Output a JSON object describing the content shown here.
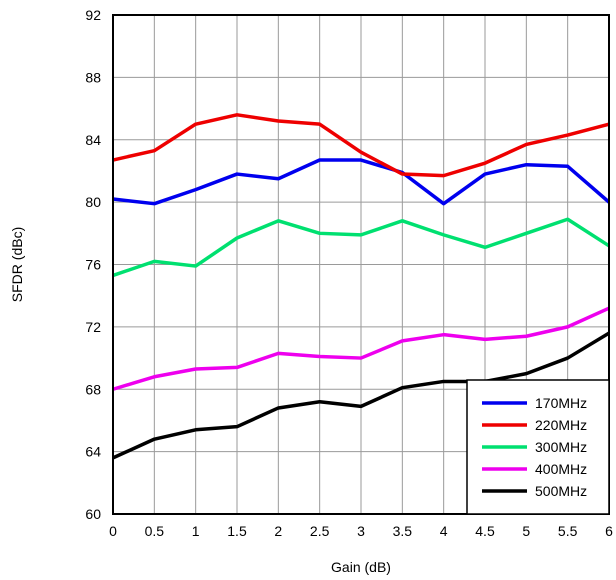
{
  "chart_data": {
    "type": "line",
    "xlabel": "Gain (dB)",
    "ylabel": "SFDR (dBc)",
    "xlim": [
      0,
      6
    ],
    "ylim": [
      60,
      92
    ],
    "xticks": [
      0,
      0.5,
      1,
      1.5,
      2,
      2.5,
      3,
      3.5,
      4,
      4.5,
      5,
      5.5,
      6
    ],
    "xtick_labels": [
      "0",
      "0.5",
      "1",
      "1.5",
      "2",
      "2.5",
      "3",
      "3.5",
      "4",
      "4.5",
      "5",
      "5.5",
      "6"
    ],
    "yticks": [
      60,
      64,
      68,
      72,
      76,
      80,
      84,
      88,
      92
    ],
    "ytick_labels": [
      "60",
      "64",
      "68",
      "72",
      "76",
      "80",
      "84",
      "88",
      "92"
    ],
    "grid": true,
    "legend_position": "bottom-right",
    "x": [
      0,
      0.5,
      1,
      1.5,
      2,
      2.5,
      3,
      3.5,
      4,
      4.5,
      5,
      5.5,
      6
    ],
    "series": [
      {
        "name": "170MHz",
        "color": "#0000ee",
        "values": [
          80.2,
          79.9,
          80.8,
          81.8,
          81.5,
          82.7,
          82.7,
          81.9,
          79.9,
          81.8,
          82.4,
          82.3,
          80.0
        ]
      },
      {
        "name": "220MHz",
        "color": "#ee0000",
        "values": [
          82.7,
          83.3,
          85.0,
          85.6,
          85.2,
          85.0,
          83.2,
          81.8,
          81.7,
          82.5,
          83.7,
          84.3,
          85.0
        ]
      },
      {
        "name": "300MHz",
        "color": "#00e070",
        "values": [
          75.3,
          76.2,
          75.9,
          77.7,
          78.8,
          78.0,
          77.9,
          78.8,
          77.9,
          77.1,
          78.0,
          78.9,
          77.2
        ]
      },
      {
        "name": "400MHz",
        "color": "#ee00ee",
        "values": [
          68.0,
          68.8,
          69.3,
          69.4,
          70.3,
          70.1,
          70.0,
          71.1,
          71.5,
          71.2,
          71.4,
          72.0,
          73.2
        ]
      },
      {
        "name": "500MHz",
        "color": "#000000",
        "values": [
          63.6,
          64.8,
          65.4,
          65.6,
          66.8,
          67.2,
          66.9,
          68.1,
          68.5,
          68.5,
          69.0,
          70.0,
          71.6
        ]
      }
    ]
  }
}
